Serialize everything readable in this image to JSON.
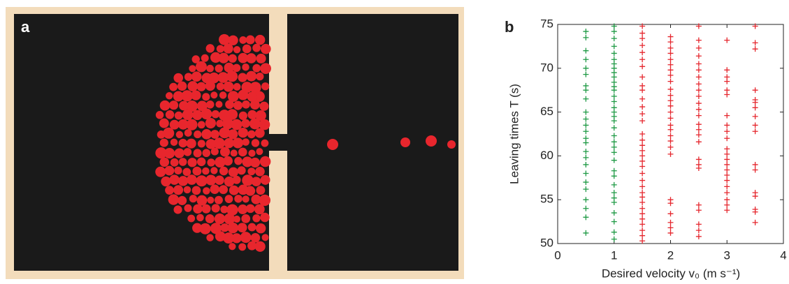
{
  "panel_labels": [
    "a",
    "b"
  ],
  "chart_data": {
    "type": "scatter",
    "xlabel": "Desired velocity v₀ (m s⁻¹)",
    "ylabel": "Leaving times T (s)",
    "xlim": [
      0,
      4
    ],
    "xticks": [
      0,
      1,
      2,
      3,
      4
    ],
    "ylim": [
      50,
      75
    ],
    "yticks": [
      50,
      55,
      60,
      65,
      70,
      75
    ],
    "marker": "+",
    "series": [
      {
        "color": "#1f9a45",
        "x": [
          0.5,
          0.5,
          0.5,
          0.5,
          0.5,
          0.5,
          0.5,
          0.5,
          0.5,
          0.5,
          0.5,
          0.5,
          0.5,
          0.5,
          0.5,
          0.5,
          0.5,
          0.5,
          0.5,
          0.5,
          0.5,
          0.5,
          0.5,
          0.5,
          0.5,
          1,
          1,
          1,
          1,
          1,
          1,
          1,
          1,
          1,
          1,
          1,
          1,
          1,
          1,
          1,
          1,
          1,
          1,
          1,
          1,
          1,
          1,
          1,
          1,
          1,
          1,
          1,
          1,
          1,
          1,
          1,
          1,
          1,
          1,
          1
        ],
        "values": [
          74.2,
          73.5,
          72,
          71,
          70,
          69.3,
          68,
          67.5,
          66.5,
          65,
          64.2,
          63.5,
          62.8,
          62,
          61.5,
          60.5,
          59.8,
          59,
          58,
          57,
          56.2,
          55,
          54,
          53,
          51.2,
          74.8,
          74.2,
          73.4,
          72.5,
          71.7,
          71,
          70.5,
          70,
          69.5,
          69,
          68.4,
          67.9,
          67.5,
          66.8,
          66.2,
          65.5,
          65,
          64.5,
          64,
          63.2,
          62.3,
          61.6,
          61,
          60.4,
          59.5,
          58.3,
          57.7,
          56.7,
          55.8,
          55.2,
          54.7,
          53.5,
          52.5,
          51.3,
          50.5
        ]
      },
      {
        "color": "#e5262d",
        "x": [
          1.5,
          1.5,
          1.5,
          1.5,
          1.5,
          1.5,
          1.5,
          1.5,
          1.5,
          1.5,
          1.5,
          1.5,
          1.5,
          1.5,
          1.5,
          1.5,
          1.5,
          1.5,
          1.5,
          1.5,
          1.5,
          1.5,
          1.5,
          1.5,
          1.5,
          1.5,
          1.5,
          1.5,
          1.5,
          1.5,
          1.5,
          1.5,
          1.5,
          1.5,
          2,
          2,
          2,
          2,
          2,
          2,
          2,
          2,
          2,
          2,
          2,
          2,
          2,
          2,
          2,
          2,
          2,
          2,
          2,
          2,
          2,
          2,
          2,
          2,
          2,
          2,
          2,
          2.5,
          2.5,
          2.5,
          2.5,
          2.5,
          2.5,
          2.5,
          2.5,
          2.5,
          2.5,
          2.5,
          2.5,
          2.5,
          2.5,
          2.5,
          2.5,
          2.5,
          2.5,
          2.5,
          2.5,
          2.5,
          2.5,
          2.5,
          2.5,
          2.5,
          3,
          3,
          3,
          3,
          3,
          3,
          3,
          3,
          3,
          3,
          3,
          3,
          3,
          3,
          3,
          3,
          3,
          3,
          3,
          3,
          3,
          3,
          3.5,
          3.5,
          3.5,
          3.5,
          3.5,
          3.5,
          3.5,
          3.5,
          3.5,
          3.5,
          3.5,
          3.5,
          3.5,
          3.5,
          3.5,
          3.5,
          3.5
        ],
        "values": [
          74.8,
          74,
          73.4,
          72.6,
          71.8,
          71,
          70.2,
          69,
          68,
          67.5,
          66.5,
          65.6,
          64.8,
          64,
          62.5,
          61.8,
          61.2,
          60.6,
          60,
          59.4,
          58.8,
          58,
          57.2,
          56.5,
          55.8,
          55.3,
          54.7,
          54,
          53.4,
          52.8,
          52.2,
          51.5,
          50.9,
          50.3,
          73.6,
          73,
          72.3,
          71.7,
          71,
          70.4,
          69.8,
          69.2,
          68.5,
          67.6,
          66.9,
          66.3,
          65.7,
          65,
          64.3,
          63.5,
          63,
          62.3,
          61.7,
          61,
          60.2,
          55,
          54.6,
          53.4,
          52.4,
          51.8,
          51.2,
          74.8,
          73.2,
          72.3,
          71.4,
          70.5,
          69.8,
          69,
          68.2,
          67.5,
          66.8,
          66,
          65.3,
          64.6,
          63.6,
          63,
          62.4,
          61.6,
          59.6,
          59,
          58.6,
          54.4,
          53.8,
          52.2,
          51.5,
          50.8,
          73.2,
          69.8,
          69,
          68.5,
          67.5,
          67,
          64.6,
          63.5,
          62.8,
          62,
          60.8,
          60.2,
          59.6,
          59,
          58.4,
          57.8,
          57.2,
          56.5,
          55.8,
          55,
          54.4,
          53.8,
          74.8,
          72.9,
          72.2,
          67.5,
          66.4,
          66.1,
          65.5,
          64.5,
          63.5,
          62.8,
          59,
          58.4,
          55.8,
          55.4,
          53.9,
          53.6,
          52.4
        ]
      }
    ]
  }
}
